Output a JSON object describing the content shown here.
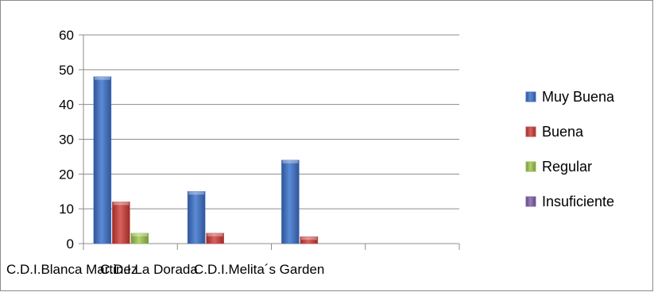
{
  "chart_data": {
    "type": "bar",
    "categories": [
      "C.D.I.Blanca Martinez",
      "C.D.I.La Dorada",
      "C.D.I.Melita´s Garden"
    ],
    "series": [
      {
        "name": "Muy Buena",
        "values": [
          48,
          15,
          24
        ],
        "color": "#4472c4"
      },
      {
        "name": "Buena",
        "values": [
          12,
          3,
          2
        ],
        "color": "#c0504d"
      },
      {
        "name": "Regular",
        "values": [
          3,
          0,
          0
        ],
        "color": "#9bbb59"
      },
      {
        "name": "Insuficiente",
        "values": [
          0,
          0,
          0
        ],
        "color": "#8064a2"
      }
    ],
    "ylim": [
      0,
      60
    ],
    "yticks": [
      0,
      10,
      20,
      30,
      40,
      50,
      60
    ],
    "grid": true,
    "legend": "right",
    "title": "",
    "xlabel": "",
    "ylabel": ""
  }
}
